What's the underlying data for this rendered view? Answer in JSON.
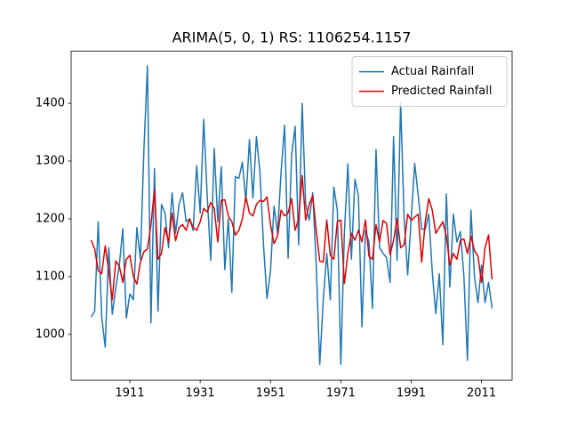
{
  "chart_data": {
    "type": "line",
    "title": "ARIMA(5, 0, 1) RS: 1106254.1157",
    "x": [
      1900,
      1901,
      1902,
      1903,
      1904,
      1905,
      1906,
      1907,
      1908,
      1909,
      1910,
      1911,
      1912,
      1913,
      1914,
      1915,
      1916,
      1917,
      1918,
      1919,
      1920,
      1921,
      1922,
      1923,
      1924,
      1925,
      1926,
      1927,
      1928,
      1929,
      1930,
      1931,
      1932,
      1933,
      1934,
      1935,
      1936,
      1937,
      1938,
      1939,
      1940,
      1941,
      1942,
      1943,
      1944,
      1945,
      1946,
      1947,
      1948,
      1949,
      1950,
      1951,
      1952,
      1953,
      1954,
      1955,
      1956,
      1957,
      1958,
      1959,
      1960,
      1961,
      1962,
      1963,
      1964,
      1965,
      1966,
      1967,
      1968,
      1969,
      1970,
      1971,
      1972,
      1973,
      1974,
      1975,
      1976,
      1977,
      1978,
      1979,
      1980,
      1981,
      1982,
      1983,
      1984,
      1985,
      1986,
      1987,
      1988,
      1989,
      1990,
      1991,
      1992,
      1993,
      1994,
      1995,
      1996,
      1997,
      1998,
      1999,
      2000,
      2001,
      2002,
      2003,
      2004,
      2005,
      2006,
      2007,
      2008,
      2009,
      2010,
      2011,
      2012,
      2013,
      2014
    ],
    "series": [
      {
        "name": "Actual Rainfall",
        "color": "#1f77b4",
        "values": [
          1030,
          1040,
          1195,
          1030,
          978,
          1150,
          1035,
          1080,
          1120,
          1183,
          1028,
          1070,
          1060,
          1185,
          1130,
          1320,
          1465,
          1020,
          1287,
          1040,
          1225,
          1210,
          1150,
          1245,
          1175,
          1225,
          1245,
          1195,
          1200,
          1180,
          1292,
          1210,
          1372,
          1240,
          1128,
          1322,
          1195,
          1290,
          1112,
          1200,
          1073,
          1273,
          1270,
          1298,
          1230,
          1337,
          1236,
          1342,
          1280,
          1155,
          1062,
          1110,
          1222,
          1175,
          1280,
          1362,
          1132,
          1310,
          1360,
          1155,
          1400,
          1225,
          1198,
          1245,
          1120,
          948,
          1060,
          1140,
          1060,
          1255,
          1215,
          948,
          1175,
          1295,
          1130,
          1268,
          1240,
          1013,
          1180,
          1160,
          1045,
          1320,
          1150,
          1140,
          1133,
          1090,
          1342,
          1128,
          1402,
          1200,
          1103,
          1200,
          1296,
          1240,
          1182,
          1182,
          1208,
          1108,
          1036,
          1105,
          982,
          1243,
          1082,
          1208,
          1160,
          1178,
          1100,
          955,
          1215,
          1100,
          1055,
          1120,
          1055,
          1090,
          1045
        ]
      },
      {
        "name": "Predicted Rainfall",
        "color": "#e00000",
        "values": [
          1163,
          1148,
          1110,
          1105,
          1153,
          1110,
          1060,
          1127,
          1118,
          1090,
          1130,
          1137,
          1100,
          1087,
          1125,
          1143,
          1148,
          1190,
          1250,
          1130,
          1140,
          1185,
          1160,
          1210,
          1162,
          1185,
          1190,
          1180,
          1200,
          1185,
          1180,
          1195,
          1218,
          1212,
          1228,
          1218,
          1160,
          1232,
          1233,
          1205,
          1195,
          1172,
          1180,
          1200,
          1238,
          1210,
          1205,
          1225,
          1232,
          1230,
          1238,
          1190,
          1157,
          1170,
          1215,
          1205,
          1210,
          1235,
          1180,
          1200,
          1275,
          1198,
          1225,
          1240,
          1180,
          1127,
          1125,
          1198,
          1137,
          1130,
          1195,
          1198,
          1088,
          1140,
          1175,
          1163,
          1180,
          1160,
          1198,
          1135,
          1130,
          1190,
          1160,
          1197,
          1192,
          1138,
          1163,
          1200,
          1150,
          1155,
          1208,
          1197,
          1203,
          1208,
          1125,
          1195,
          1235,
          1215,
          1175,
          1185,
          1195,
          1170,
          1120,
          1140,
          1130,
          1163,
          1165,
          1140,
          1170,
          1145,
          1135,
          1090,
          1150,
          1172,
          1095
        ]
      }
    ],
    "xlim": [
      1894.3,
      2019.7
    ],
    "xticks": [
      1911,
      1931,
      1951,
      1971,
      1991,
      2011
    ],
    "ylim": [
      921,
      1490
    ],
    "yticks": [
      1000,
      1100,
      1200,
      1300,
      1400
    ],
    "legend": "upper right"
  }
}
